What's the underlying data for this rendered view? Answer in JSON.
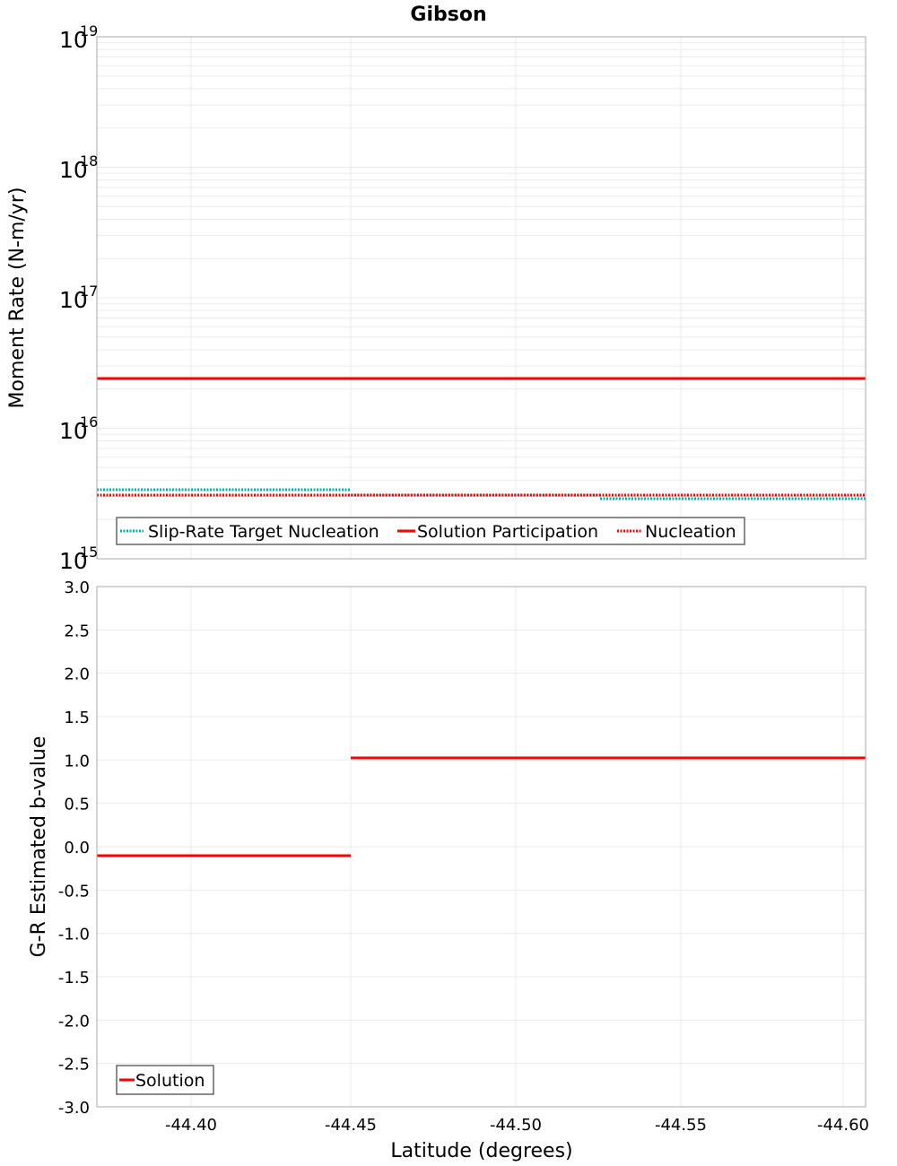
{
  "title": "Gibson",
  "colors": {
    "red": "#ff0000",
    "cyan": "#00b0b0",
    "grid": "#ebebeb",
    "frame": "#aaaaaa"
  },
  "chart_data": [
    {
      "type": "line",
      "title": "Gibson",
      "xlabel": "Latitude (degrees)",
      "ylabel": "Moment Rate (N-m/yr)",
      "yscale": "log",
      "ylim": [
        1000000000000000.0,
        1e+19
      ],
      "xlim": [
        -44.371,
        -44.605
      ],
      "x_reversed": true,
      "ytick_labels": [
        "10^15",
        "10^16",
        "10^17",
        "10^18",
        "10^19"
      ],
      "legend": [
        "Slip-Rate Target Nucleation",
        "Solution Participation",
        "Nucleation"
      ],
      "legend_position": "lower-left",
      "grid": true,
      "segments_x": [
        [
          -44.371,
          -44.45
        ],
        [
          -44.45,
          -44.526
        ],
        [
          -44.526,
          -44.605
        ]
      ],
      "series": [
        {
          "name": "Slip-Rate Target Nucleation",
          "style": "dotted",
          "color": "#00b0b0",
          "values": [
            3400000000000000.0,
            3100000000000000.0,
            2900000000000000.0
          ]
        },
        {
          "name": "Solution Participation",
          "style": "solid",
          "color": "#ff0000",
          "values": [
            2.4e+16,
            2.4e+16,
            2.4e+16
          ]
        },
        {
          "name": "Nucleation",
          "style": "dotted",
          "color": "#ff0000",
          "values": [
            3100000000000000.0,
            3100000000000000.0,
            3100000000000000.0
          ]
        }
      ]
    },
    {
      "type": "line",
      "title": "",
      "xlabel": "Latitude (degrees)",
      "ylabel": "G-R Estimated b-value",
      "ylim": [
        -3.0,
        3.0
      ],
      "xlim": [
        -44.371,
        -44.605
      ],
      "x_reversed": true,
      "xtick_labels": [
        "-44.40",
        "-44.45",
        "-44.50",
        "-44.55",
        "-44.60"
      ],
      "ytick_labels": [
        "3.0",
        "2.5",
        "2.0",
        "1.5",
        "1.0",
        "0.5",
        "0.0",
        "-0.5",
        "-1.0",
        "-1.5",
        "-2.0",
        "-2.5",
        "-3.0"
      ],
      "legend": [
        "Solution"
      ],
      "legend_position": "lower-left",
      "grid": true,
      "segments_x": [
        [
          -44.371,
          -44.45
        ],
        [
          -44.45,
          -44.526
        ],
        [
          -44.526,
          -44.605
        ]
      ],
      "series": [
        {
          "name": "Solution",
          "style": "solid",
          "color": "#ff0000",
          "values": [
            -0.1,
            1.03,
            1.03
          ]
        }
      ]
    }
  ],
  "top": {
    "ylabel": "Moment Rate (N-m/yr)",
    "yticks": [
      {
        "base": "10",
        "exp": "19"
      },
      {
        "base": "10",
        "exp": "18"
      },
      {
        "base": "10",
        "exp": "17"
      },
      {
        "base": "10",
        "exp": "16"
      },
      {
        "base": "10",
        "exp": "15"
      }
    ],
    "legend": [
      "Slip-Rate Target Nucleation",
      "Solution Participation",
      "Nucleation"
    ]
  },
  "bottom": {
    "ylabel": "G-R Estimated b-value",
    "yticks": [
      "3.0",
      "2.5",
      "2.0",
      "1.5",
      "1.0",
      "0.5",
      "0.0",
      "-0.5",
      "-1.0",
      "-1.5",
      "-2.0",
      "-2.5",
      "-3.0"
    ],
    "xticks": [
      "-44.40",
      "-44.45",
      "-44.50",
      "-44.55",
      "-44.60"
    ],
    "xlabel": "Latitude (degrees)",
    "legend": [
      "Solution"
    ]
  }
}
